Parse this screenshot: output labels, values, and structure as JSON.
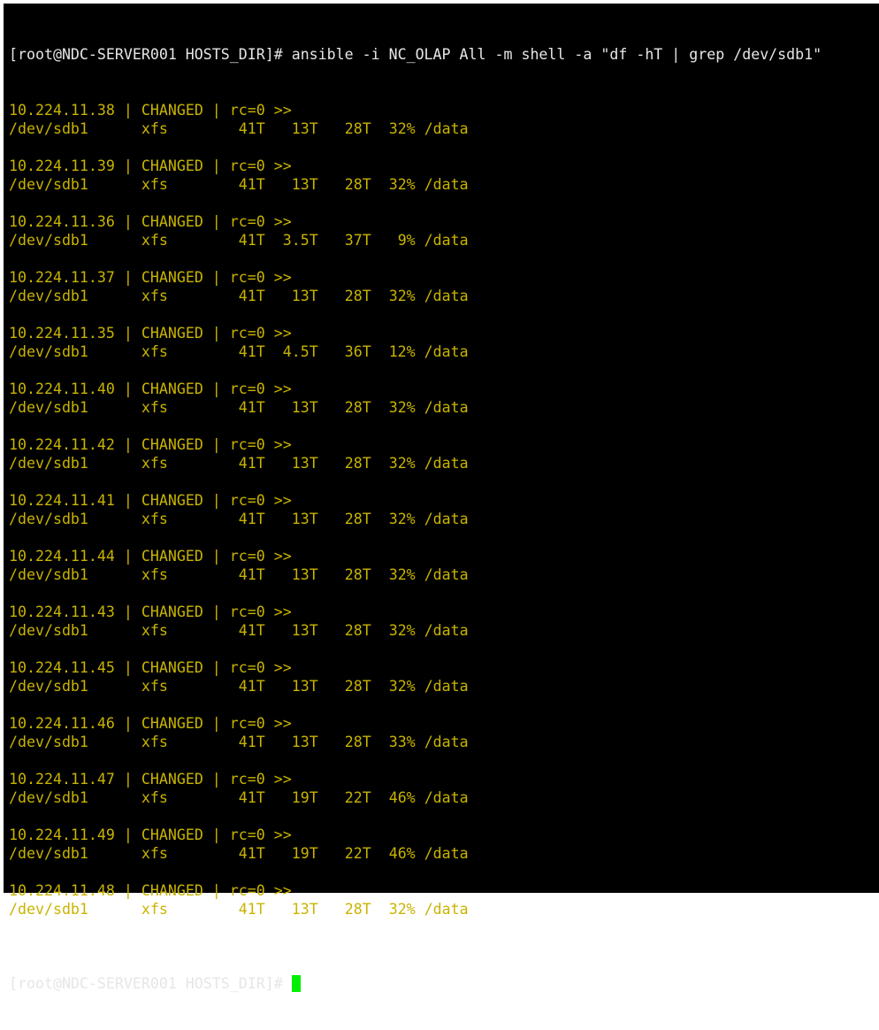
{
  "prompt": "[root@NDC-SERVER001 HOSTS_DIR]#",
  "command": "ansible -i NC_OLAP All -m shell -a \"df -hT | grep /dev/sdb1\"",
  "status": "CHANGED",
  "rc": "rc=0 >>",
  "colors": {
    "background": "#000000",
    "output": "#c9b400",
    "prompt": "#e6e6e6",
    "cursor": "#00f000"
  },
  "results": [
    {
      "host": "10.224.11.38",
      "fs": "/dev/sdb1",
      "type": "xfs",
      "size": "41T",
      "used": "13T",
      "avail": "28T",
      "use": "32%",
      "mount": "/data"
    },
    {
      "host": "10.224.11.39",
      "fs": "/dev/sdb1",
      "type": "xfs",
      "size": "41T",
      "used": "13T",
      "avail": "28T",
      "use": "32%",
      "mount": "/data"
    },
    {
      "host": "10.224.11.36",
      "fs": "/dev/sdb1",
      "type": "xfs",
      "size": "41T",
      "used": "3.5T",
      "avail": "37T",
      "use": "9%",
      "mount": "/data"
    },
    {
      "host": "10.224.11.37",
      "fs": "/dev/sdb1",
      "type": "xfs",
      "size": "41T",
      "used": "13T",
      "avail": "28T",
      "use": "32%",
      "mount": "/data"
    },
    {
      "host": "10.224.11.35",
      "fs": "/dev/sdb1",
      "type": "xfs",
      "size": "41T",
      "used": "4.5T",
      "avail": "36T",
      "use": "12%",
      "mount": "/data"
    },
    {
      "host": "10.224.11.40",
      "fs": "/dev/sdb1",
      "type": "xfs",
      "size": "41T",
      "used": "13T",
      "avail": "28T",
      "use": "32%",
      "mount": "/data"
    },
    {
      "host": "10.224.11.42",
      "fs": "/dev/sdb1",
      "type": "xfs",
      "size": "41T",
      "used": "13T",
      "avail": "28T",
      "use": "32%",
      "mount": "/data"
    },
    {
      "host": "10.224.11.41",
      "fs": "/dev/sdb1",
      "type": "xfs",
      "size": "41T",
      "used": "13T",
      "avail": "28T",
      "use": "32%",
      "mount": "/data"
    },
    {
      "host": "10.224.11.44",
      "fs": "/dev/sdb1",
      "type": "xfs",
      "size": "41T",
      "used": "13T",
      "avail": "28T",
      "use": "32%",
      "mount": "/data"
    },
    {
      "host": "10.224.11.43",
      "fs": "/dev/sdb1",
      "type": "xfs",
      "size": "41T",
      "used": "13T",
      "avail": "28T",
      "use": "32%",
      "mount": "/data"
    },
    {
      "host": "10.224.11.45",
      "fs": "/dev/sdb1",
      "type": "xfs",
      "size": "41T",
      "used": "13T",
      "avail": "28T",
      "use": "32%",
      "mount": "/data"
    },
    {
      "host": "10.224.11.46",
      "fs": "/dev/sdb1",
      "type": "xfs",
      "size": "41T",
      "used": "13T",
      "avail": "28T",
      "use": "33%",
      "mount": "/data"
    },
    {
      "host": "10.224.11.47",
      "fs": "/dev/sdb1",
      "type": "xfs",
      "size": "41T",
      "used": "19T",
      "avail": "22T",
      "use": "46%",
      "mount": "/data"
    },
    {
      "host": "10.224.11.49",
      "fs": "/dev/sdb1",
      "type": "xfs",
      "size": "41T",
      "used": "19T",
      "avail": "22T",
      "use": "46%",
      "mount": "/data"
    },
    {
      "host": "10.224.11.48",
      "fs": "/dev/sdb1",
      "type": "xfs",
      "size": "41T",
      "used": "13T",
      "avail": "28T",
      "use": "32%",
      "mount": "/data"
    }
  ]
}
